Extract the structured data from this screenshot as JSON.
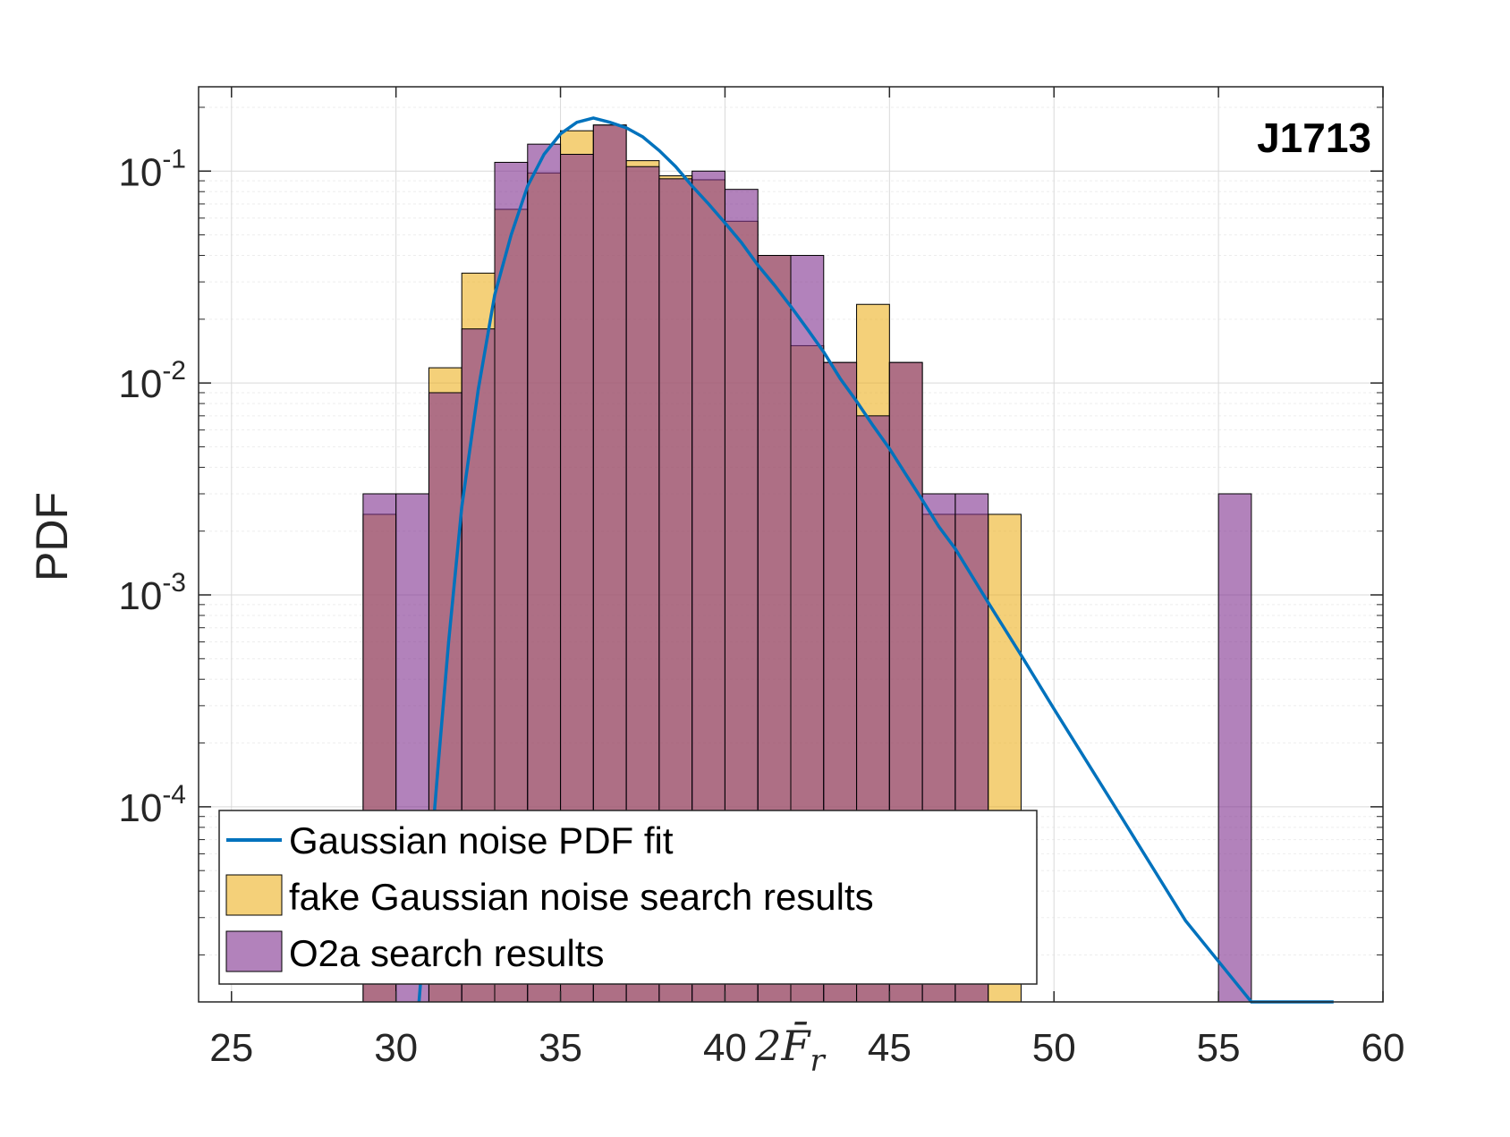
{
  "chart_data": {
    "type": "bar",
    "xlabel": "2F̄_r",
    "xlabel_main": "2F̄",
    "xlabel_sub": "r",
    "ylabel": "PDF",
    "annotation": "J1713",
    "xlim": [
      24,
      60
    ],
    "ylim": [
      1.2e-05,
      0.25
    ],
    "yscale": "log",
    "grid": true,
    "legend_position": "bottom-left",
    "x_ticks": [
      "25",
      "30",
      "35",
      "40",
      "45",
      "50",
      "55",
      "60"
    ],
    "y_ticks": [
      {
        "base": "10",
        "exp": "-1",
        "value": 0.1
      },
      {
        "base": "10",
        "exp": "-2",
        "value": 0.01
      },
      {
        "base": "10",
        "exp": "-3",
        "value": 0.001
      },
      {
        "base": "10",
        "exp": "-4",
        "value": 0.0001
      }
    ],
    "bin_width": 1,
    "series": [
      {
        "name": "Gaussian noise PDF fit",
        "type": "line",
        "color": "#0072BD",
        "x": [
          30.7,
          31.0,
          31.3,
          31.6,
          32.0,
          32.5,
          33.0,
          33.5,
          34.0,
          34.5,
          35.0,
          35.5,
          36.0,
          36.5,
          37.0,
          37.5,
          38.0,
          38.5,
          39.0,
          39.5,
          40.0,
          40.5,
          41.0,
          41.5,
          42.0,
          42.5,
          43.0,
          43.5,
          44.0,
          44.5,
          45.0,
          45.5,
          46.0,
          46.5,
          47.0,
          48.0,
          49.0,
          50.0,
          52.0,
          54.0,
          56.0,
          58.5
        ],
        "values": [
          1e-05,
          4.5e-05,
          0.00017,
          0.0006,
          0.0026,
          0.0093,
          0.026,
          0.05,
          0.085,
          0.12,
          0.15,
          0.17,
          0.178,
          0.17,
          0.16,
          0.145,
          0.125,
          0.105,
          0.085,
          0.07,
          0.057,
          0.046,
          0.036,
          0.029,
          0.023,
          0.018,
          0.014,
          0.0105,
          0.0082,
          0.0063,
          0.0049,
          0.0037,
          0.0028,
          0.0021,
          0.00165,
          0.00092,
          0.00052,
          0.00029,
          9.2e-05,
          2.9e-05,
          9.1e-06,
          1.2e-05
        ]
      },
      {
        "name": "fake Gaussian noise search results",
        "type": "bar",
        "color": "#EDB120",
        "bin_starts": [
          29,
          30,
          31,
          32,
          33,
          34,
          35,
          36,
          37,
          38,
          39,
          40,
          41,
          42,
          43,
          44,
          45,
          46,
          47,
          48,
          55
        ],
        "values": [
          0.0024,
          0.0,
          0.0118,
          0.033,
          0.066,
          0.098,
          0.155,
          0.165,
          0.112,
          0.095,
          0.091,
          0.058,
          0.04,
          0.015,
          0.0125,
          0.0235,
          0.0125,
          0.0024,
          0.0024,
          0.0024,
          0.0
        ]
      },
      {
        "name": "O2a search results",
        "type": "bar",
        "color": "#7E2F8E",
        "bin_starts": [
          29,
          30,
          31,
          32,
          33,
          34,
          35,
          36,
          37,
          38,
          39,
          40,
          41,
          42,
          43,
          44,
          45,
          46,
          47,
          48,
          55
        ],
        "values": [
          0.003,
          0.003,
          0.009,
          0.018,
          0.11,
          0.134,
          0.12,
          0.165,
          0.105,
          0.092,
          0.1,
          0.082,
          0.04,
          0.04,
          0.0125,
          0.007,
          0.0125,
          0.003,
          0.003,
          0.0,
          0.003
        ]
      }
    ]
  }
}
